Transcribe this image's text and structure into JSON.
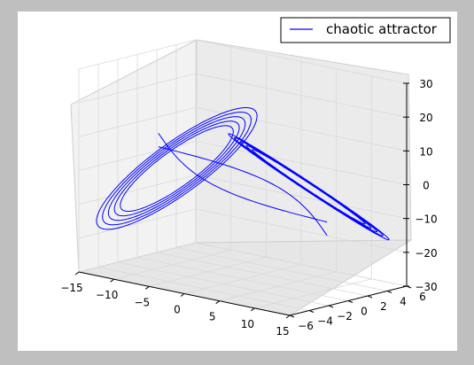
{
  "chart_data": {
    "type": "line",
    "projection": "3d",
    "title": "",
    "legend": {
      "position": "top-right",
      "entries": [
        "chaotic attractor"
      ]
    },
    "series": [
      {
        "name": "chaotic attractor",
        "color": "#0000ff",
        "loops": [
          {
            "center_x": -8,
            "center_y": -1,
            "center_z": 0,
            "orbits": [
              13.5,
              12.5,
              11.5,
              10.5,
              9.5
            ],
            "amp_x": 8.5,
            "amp_y": 5.5,
            "amp_z": 16
          },
          {
            "center_x": 8,
            "center_y": 1,
            "center_z": 0,
            "orbits": [
              13.5,
              12.5,
              11.5,
              10.5,
              9.5
            ],
            "amp_x": 8.5,
            "amp_y": 5.5,
            "amp_z": 16
          }
        ]
      }
    ],
    "x_axis": {
      "ticks": [
        "−15",
        "−10",
        "−5",
        "0",
        "5",
        "10",
        "15"
      ],
      "range": [
        -15,
        15
      ]
    },
    "y_axis": {
      "ticks": [
        "−6",
        "−4",
        "−2",
        "0",
        "2",
        "4",
        "6"
      ],
      "range": [
        -6,
        6
      ]
    },
    "z_axis": {
      "ticks": [
        "−30",
        "−20",
        "−10",
        "0",
        "10",
        "20",
        "30"
      ],
      "range": [
        -30,
        30
      ]
    },
    "grid": true,
    "colors": {
      "figure_background": "#bfbfbf",
      "axes_background": "#ffffff",
      "pane_left": "#f2f2f2",
      "pane_right": "#ebebeb",
      "pane_floor": "#e6e6e6",
      "line": "#0000ff"
    }
  }
}
